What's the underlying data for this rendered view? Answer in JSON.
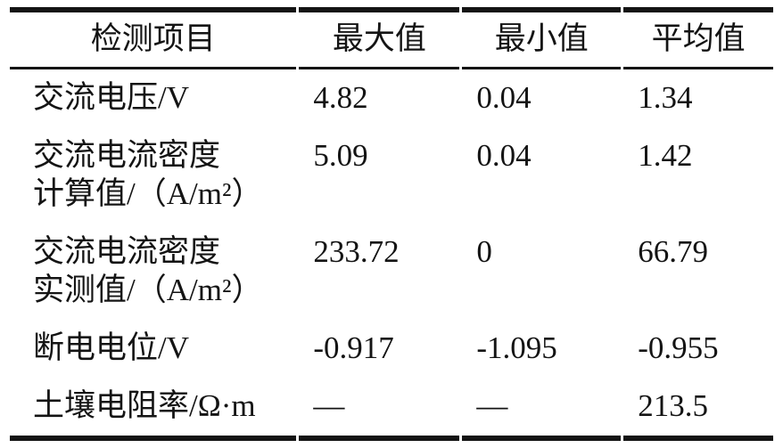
{
  "page": {
    "background": "#ffffff",
    "text_color": "#141414",
    "rule_color": "#141414"
  },
  "table": {
    "columns": [
      {
        "key": "item",
        "label": "检测项目"
      },
      {
        "key": "max",
        "label": "最大值"
      },
      {
        "key": "min",
        "label": "最小值"
      },
      {
        "key": "avg",
        "label": "平均值"
      }
    ],
    "rows": [
      {
        "item": "交流电压/V",
        "max": "4.82",
        "min": "0.04",
        "avg": "1.34"
      },
      {
        "item": "交流电流密度\n计算值/（A/m²）",
        "max": "5.09",
        "min": "0.04",
        "avg": "1.42"
      },
      {
        "item": "交流电流密度\n实测值/（A/m²）",
        "max": "233.72",
        "min": "0",
        "avg": "66.79"
      },
      {
        "item": "断电电位/V",
        "max": "-0.917",
        "min": "-1.095",
        "avg": "-0.955"
      },
      {
        "item": "土壤电阻率/Ω·m",
        "max": "—",
        "min": "—",
        "avg": "213.5"
      }
    ]
  }
}
